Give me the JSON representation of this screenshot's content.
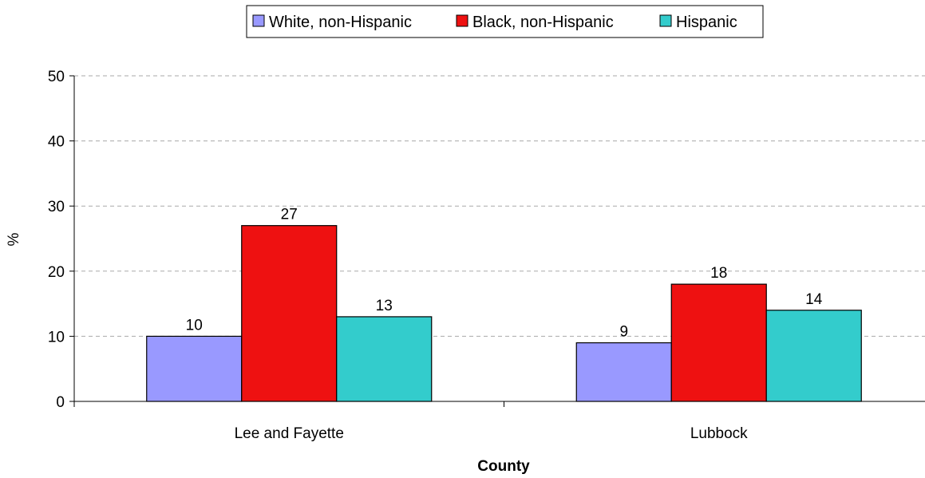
{
  "chart_data": {
    "type": "bar",
    "title": "",
    "xlabel": "County",
    "ylabel": "%",
    "ylim": [
      0,
      50
    ],
    "yticks": [
      0,
      10,
      20,
      30,
      40,
      50
    ],
    "grid": true,
    "legend_position": "top",
    "categories": [
      "Lee and Fayette",
      "Lubbock"
    ],
    "series": [
      {
        "name": "White, non-Hispanic",
        "color": "#9999ff",
        "values": [
          10,
          9
        ]
      },
      {
        "name": "Black, non-Hispanic",
        "color": "#ee1111",
        "values": [
          27,
          18
        ]
      },
      {
        "name": "Hispanic",
        "color": "#33cccc",
        "values": [
          13,
          14
        ]
      }
    ]
  }
}
